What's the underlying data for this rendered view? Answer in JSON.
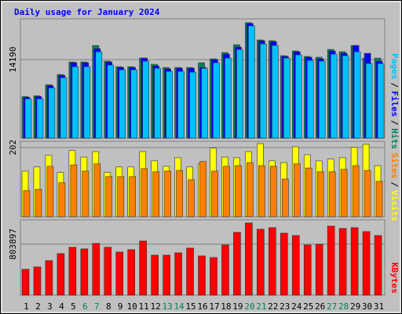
{
  "chart_data": [
    {
      "type": "bar",
      "title": "Daily usage for January 2024",
      "separator": "/",
      "ylim": [
        0,
        21560
      ],
      "yticks": [
        14190
      ],
      "grid": true,
      "series": [
        {
          "name": "Pages",
          "color": "#00c0ff",
          "values": [
            7100,
            7100,
            9080,
            10930,
            12910,
            12910,
            15610,
            13200,
            12350,
            12350,
            13910,
            12630,
            12060,
            12060,
            11920,
            12630,
            13620,
            14470,
            16030,
            20290,
            17030,
            16740,
            14470,
            15040,
            14050,
            13910,
            15180,
            14900,
            15610,
            13480,
            13480
          ]
        },
        {
          "name": "Files",
          "color": "#0000ff",
          "values": [
            7380,
            7520,
            9510,
            11350,
            13620,
            13620,
            16180,
            13760,
            12770,
            12770,
            14470,
            13050,
            12490,
            12630,
            12630,
            12770,
            14190,
            15180,
            16460,
            20720,
            17600,
            17450,
            14760,
            15610,
            14620,
            14330,
            15750,
            15330,
            16740,
            15330,
            13910
          ]
        },
        {
          "name": "Hits",
          "color": "#00805c",
          "values": [
            7520,
            7660,
            9650,
            11490,
            13760,
            13760,
            16740,
            13910,
            12910,
            12910,
            14470,
            13340,
            12770,
            12770,
            12770,
            13620,
            14330,
            15470,
            16890,
            20860,
            17740,
            17600,
            14900,
            15750,
            14760,
            14620,
            16030,
            15610,
            16740,
            14470,
            14470
          ]
        }
      ]
    },
    {
      "type": "bar",
      "separator": "/",
      "ylim": [
        0,
        220
      ],
      "yticks": [
        202
      ],
      "grid": true,
      "series": [
        {
          "name": "Sites",
          "color": "#ff8000",
          "values": [
            76,
            80,
            147,
            99,
            151,
            133,
            154,
            117,
            117,
            117,
            140,
            131,
            133,
            135,
            108,
            161,
            133,
            147,
            149,
            158,
            149,
            147,
            110,
            154,
            142,
            131,
            131,
            138,
            149,
            135,
            103
          ]
        },
        {
          "name": "Visits",
          "color": "#ffff00",
          "values": [
            133,
            145,
            179,
            129,
            193,
            174,
            190,
            129,
            145,
            145,
            190,
            163,
            147,
            172,
            145,
            154,
            200,
            174,
            172,
            190,
            213,
            163,
            158,
            204,
            181,
            163,
            168,
            172,
            202,
            211,
            149
          ]
        }
      ]
    },
    {
      "type": "bar",
      "ylim": [
        0,
        1187000
      ],
      "yticks": [
        803897
      ],
      "grid": true,
      "categories": [
        "1",
        "2",
        "3",
        "4",
        "5",
        "6",
        "7",
        "8",
        "9",
        "10",
        "11",
        "12",
        "13",
        "14",
        "15",
        "16",
        "17",
        "18",
        "19",
        "20",
        "21",
        "22",
        "23",
        "24",
        "25",
        "26",
        "27",
        "28",
        "29",
        "30",
        "31"
      ],
      "category_colors": [
        "#000000",
        "#000000",
        "#000000",
        "#000000",
        "#000000",
        "#00805c",
        "#00805c",
        "#000000",
        "#000000",
        "#000000",
        "#000000",
        "#000000",
        "#00805c",
        "#00805c",
        "#000000",
        "#000000",
        "#000000",
        "#000000",
        "#000000",
        "#00805c",
        "#00805c",
        "#000000",
        "#000000",
        "#000000",
        "#000000",
        "#000000",
        "#00805c",
        "#00805c",
        "#000000",
        "#000000",
        "#000000"
      ],
      "series": [
        {
          "name": "KBytes",
          "color": "#ff0000",
          "values": [
            408140,
            445250,
            544190,
            655500,
            754450,
            729710,
            816290,
            754450,
            680240,
            717340,
            853390,
            630770,
            630770,
            667870,
            742080,
            618400,
            593660,
            791550,
            989440,
            1137860,
            1038910,
            1063650,
            977070,
            939970,
            791550,
            803920,
            1088380,
            1051280,
            1063650,
            1001810,
            939970
          ]
        }
      ]
    }
  ]
}
